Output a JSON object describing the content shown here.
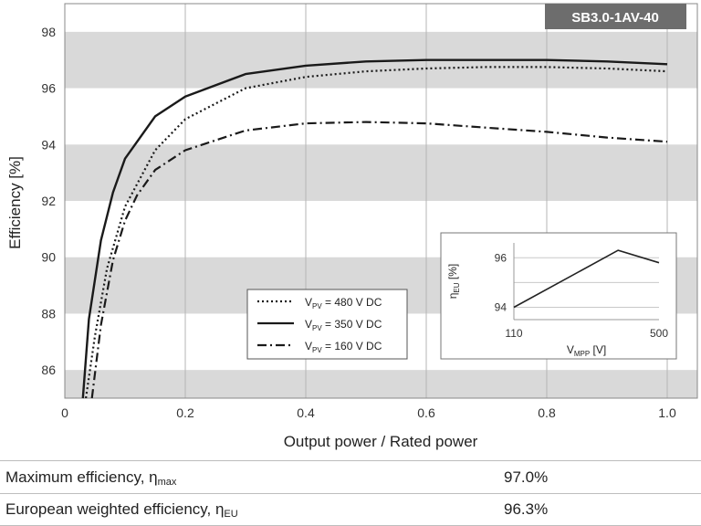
{
  "chart_data": {
    "type": "line",
    "badge": "SB3.0-1AV-40",
    "xlabel": "Output power / Rated power",
    "ylabel": "Efficiency [%]",
    "xlim": [
      0,
      1.05
    ],
    "ylim": [
      85,
      99
    ],
    "x_ticks": [
      "0",
      "0.2",
      "0.4",
      "0.6",
      "0.8",
      "1.0"
    ],
    "y_ticks": [
      "86",
      "88",
      "90",
      "92",
      "94",
      "96",
      "98"
    ],
    "shaded_bands": [
      [
        85,
        86
      ],
      [
        88,
        90
      ],
      [
        92,
        94
      ],
      [
        96,
        98
      ]
    ],
    "legend": [
      {
        "prefix": "V",
        "sub": "PV",
        "suffix": " = 480 V DC",
        "style": "dotted"
      },
      {
        "prefix": "V",
        "sub": "PV",
        "suffix": " = 350 V DC",
        "style": "solid"
      },
      {
        "prefix": "V",
        "sub": "PV",
        "suffix": " = 160 V DC",
        "style": "dashdot"
      }
    ],
    "series": [
      {
        "style": "dotted",
        "x": [
          0.035,
          0.05,
          0.07,
          0.1,
          0.15,
          0.2,
          0.3,
          0.4,
          0.5,
          0.6,
          0.7,
          0.8,
          0.9,
          1.0
        ],
        "y": [
          85.0,
          87.2,
          89.6,
          91.8,
          93.8,
          94.9,
          96.0,
          96.4,
          96.6,
          96.7,
          96.75,
          96.75,
          96.7,
          96.6
        ]
      },
      {
        "style": "solid",
        "x": [
          0.03,
          0.04,
          0.06,
          0.08,
          0.1,
          0.15,
          0.2,
          0.3,
          0.4,
          0.5,
          0.6,
          0.7,
          0.8,
          0.9,
          1.0
        ],
        "y": [
          85.0,
          87.8,
          90.6,
          92.3,
          93.5,
          95.0,
          95.7,
          96.5,
          96.8,
          96.95,
          97.0,
          97.0,
          97.0,
          96.95,
          96.85
        ]
      },
      {
        "style": "dashdot",
        "x": [
          0.045,
          0.06,
          0.08,
          0.1,
          0.12,
          0.15,
          0.2,
          0.3,
          0.4,
          0.5,
          0.6,
          0.7,
          0.8,
          0.9,
          1.0
        ],
        "y": [
          85.0,
          87.6,
          89.9,
          91.3,
          92.2,
          93.1,
          93.8,
          94.5,
          94.75,
          94.8,
          94.75,
          94.6,
          94.45,
          94.25,
          94.1
        ]
      }
    ],
    "inset": {
      "xlabel_main": "V",
      "xlabel_sub": "MPP",
      "xlabel_unit": " [V]",
      "ylabel_main": "η",
      "ylabel_sub": "EU",
      "ylabel_unit": " [%]",
      "x_ticks": [
        "110",
        "500"
      ],
      "y_ticks": [
        "94",
        "96"
      ],
      "x": [
        110,
        390,
        500
      ],
      "y": [
        94.0,
        96.3,
        95.8
      ],
      "xlim": [
        110,
        500
      ],
      "ylim": [
        93.5,
        96.6
      ]
    }
  },
  "stats": [
    {
      "label": "Maximum efficiency, η",
      "sub": "max",
      "value": "97.0%"
    },
    {
      "label": "European weighted efficiency, η",
      "sub": "EU",
      "value": "96.3%"
    }
  ]
}
